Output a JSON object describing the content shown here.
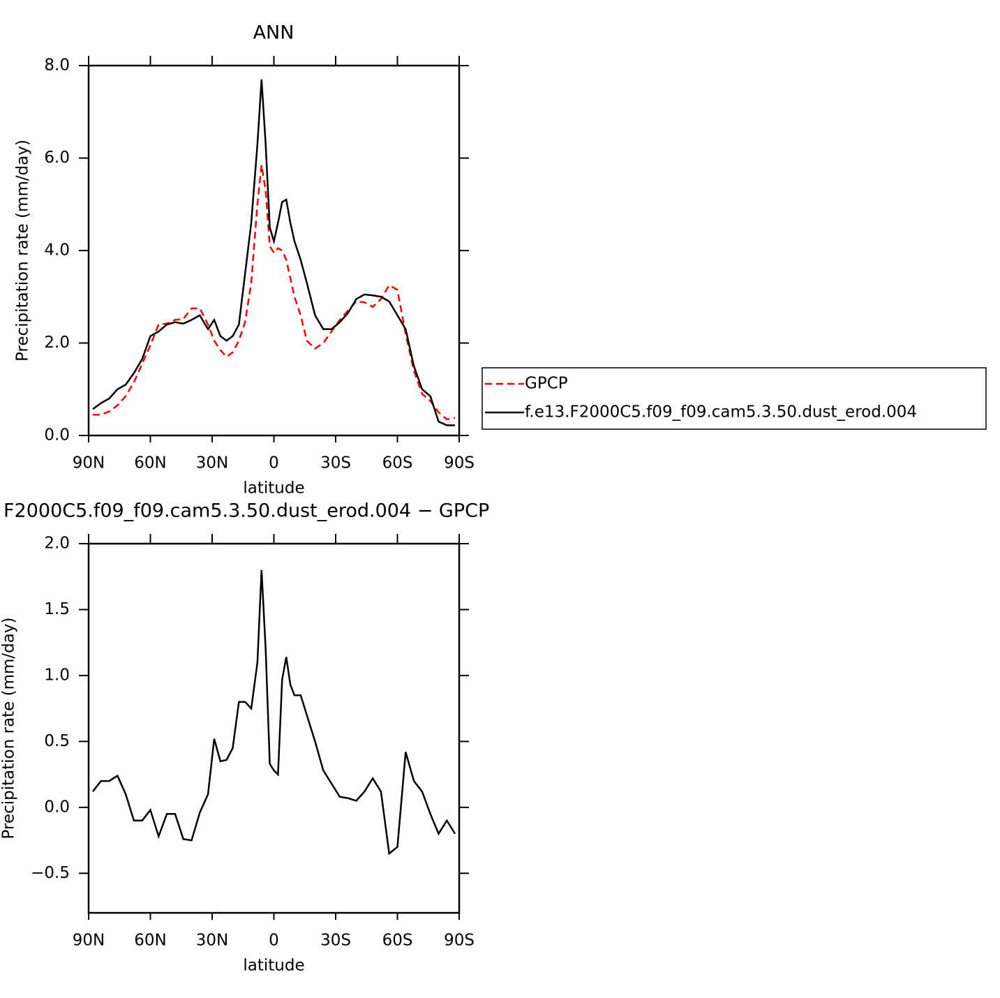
{
  "chart_data": [
    {
      "type": "line",
      "title": "ANN",
      "x_label": "latitude",
      "y_label": "Precipitation rate (mm/day)",
      "x": [
        88,
        84,
        80,
        76,
        72,
        68,
        64,
        60,
        56,
        52,
        48,
        44,
        40,
        36,
        32,
        29,
        26,
        23,
        20,
        17,
        14,
        11,
        8,
        6,
        4,
        2,
        0,
        -2,
        -4,
        -6,
        -8,
        -10,
        -13,
        -16,
        -20,
        -24,
        -28,
        -32,
        -36,
        -40,
        -44,
        -48,
        -52,
        -56,
        -60,
        -64,
        -68,
        -72,
        -76,
        -80,
        -84,
        -88
      ],
      "series": [
        {
          "name": "GPCP",
          "color": "#ff0000",
          "linestyle": "dashed",
          "values": [
            0.45,
            0.45,
            0.52,
            0.65,
            0.85,
            1.15,
            1.55,
            1.95,
            2.4,
            2.42,
            2.5,
            2.52,
            2.75,
            2.75,
            2.4,
            2.05,
            1.85,
            1.7,
            1.8,
            2.05,
            2.45,
            3.3,
            5.0,
            5.85,
            5.3,
            4.1,
            3.95,
            4.05,
            4.0,
            3.8,
            3.4,
            3.0,
            2.6,
            2.05,
            1.88,
            2.0,
            2.25,
            2.5,
            2.7,
            2.9,
            2.88,
            2.78,
            2.95,
            3.25,
            3.15,
            2.2,
            1.4,
            0.9,
            0.75,
            0.5,
            0.35,
            0.38
          ]
        },
        {
          "name": "f.e13.F2000C5.f09_f09.cam5.3.50.dust_erod.004",
          "color": "#000000",
          "linestyle": "solid",
          "values": [
            0.57,
            0.7,
            0.8,
            1.0,
            1.1,
            1.35,
            1.65,
            2.15,
            2.25,
            2.4,
            2.45,
            2.42,
            2.5,
            2.6,
            2.3,
            2.5,
            2.15,
            2.05,
            2.15,
            2.4,
            3.5,
            4.6,
            6.3,
            7.7,
            6.3,
            4.5,
            4.2,
            4.6,
            5.05,
            5.1,
            4.6,
            4.2,
            3.8,
            3.3,
            2.6,
            2.3,
            2.3,
            2.45,
            2.65,
            2.95,
            3.05,
            3.03,
            3.0,
            2.9,
            2.6,
            2.3,
            1.5,
            1.0,
            0.85,
            0.3,
            0.22,
            0.22
          ]
        }
      ],
      "xlim": [
        90,
        -90
      ],
      "xticks": [
        {
          "value": 90,
          "label": "90N"
        },
        {
          "value": 60,
          "label": "60N"
        },
        {
          "value": 30,
          "label": "30N"
        },
        0,
        {
          "value": -30,
          "label": "30S"
        },
        {
          "value": -60,
          "label": "60S"
        },
        {
          "value": -90,
          "label": "90S"
        }
      ],
      "ylim": [
        0,
        8
      ],
      "yticks": [
        {
          "value": 0,
          "label": "0.0"
        },
        {
          "value": 2,
          "label": "2.0"
        },
        {
          "value": 4,
          "label": "4.0"
        },
        {
          "value": 6,
          "label": "6.0"
        },
        {
          "value": 8,
          "label": "8.0"
        }
      ],
      "legend": "right"
    },
    {
      "type": "line",
      "title": "F2000C5.f09_f09.cam5.3.50.dust_erod.004 − GPCP",
      "x_label": "latitude",
      "y_label": "Precipitation rate (mm/day)",
      "x": [
        88,
        84,
        80,
        76,
        72,
        68,
        64,
        60,
        56,
        52,
        48,
        44,
        40,
        36,
        32,
        29,
        26,
        23,
        20,
        17,
        14,
        11,
        8,
        6,
        4,
        2,
        0,
        -2,
        -4,
        -6,
        -8,
        -10,
        -13,
        -16,
        -20,
        -24,
        -28,
        -32,
        -36,
        -40,
        -44,
        -48,
        -52,
        -56,
        -60,
        -64,
        -68,
        -72,
        -76,
        -80,
        -84,
        -88
      ],
      "series": [
        {
          "color": "#000000",
          "linestyle": "solid",
          "values": [
            0.12,
            0.2,
            0.2,
            0.24,
            0.1,
            -0.1,
            -0.1,
            -0.02,
            -0.22,
            -0.05,
            -0.05,
            -0.24,
            -0.25,
            -0.04,
            0.1,
            0.52,
            0.35,
            0.36,
            0.45,
            0.8,
            0.8,
            0.75,
            1.1,
            1.8,
            1.2,
            0.33,
            0.28,
            0.25,
            0.97,
            1.14,
            0.93,
            0.85,
            0.85,
            0.7,
            0.5,
            0.28,
            0.18,
            0.08,
            0.07,
            0.05,
            0.12,
            0.22,
            0.12,
            -0.35,
            -0.3,
            0.42,
            0.2,
            0.12,
            -0.05,
            -0.2,
            -0.1,
            -0.2
          ]
        }
      ],
      "xlim": [
        90,
        -90
      ],
      "xticks": [
        {
          "value": 90,
          "label": "90N"
        },
        {
          "value": 60,
          "label": "60N"
        },
        {
          "value": 30,
          "label": "30N"
        },
        0,
        {
          "value": -30,
          "label": "30S"
        },
        {
          "value": -60,
          "label": "60S"
        },
        {
          "value": -90,
          "label": "90S"
        }
      ],
      "ylim": [
        -0.8,
        2.0
      ],
      "yticks": [
        {
          "value": -0.5,
          "label": "−0.5"
        },
        {
          "value": 0,
          "label": "0.0"
        },
        0.5,
        {
          "value": 1,
          "label": "1.0"
        },
        1.5,
        {
          "value": 2,
          "label": "2.0"
        }
      ]
    }
  ]
}
